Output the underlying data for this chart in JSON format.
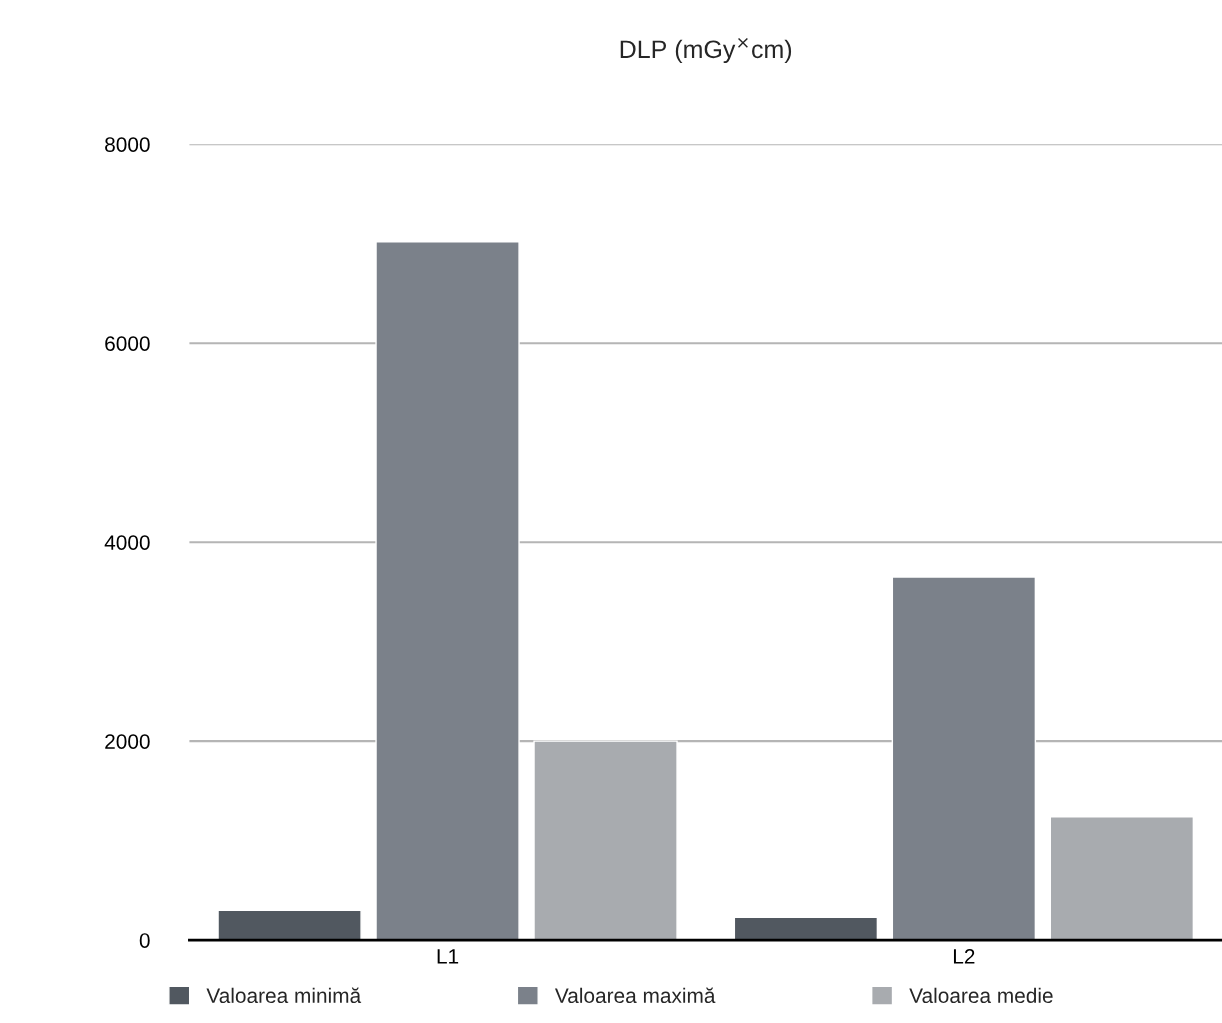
{
  "chart_data": {
    "type": "bar",
    "title": "DLP (mGy$^{×}$cm)",
    "categories": [
      "L1",
      "L2"
    ],
    "series": [
      {
        "name": "Valoarea minimă",
        "color": "#515860",
        "values": [
          300,
          230
        ]
      },
      {
        "name": "Valoarea maximă",
        "color": "#7b818a",
        "values": [
          7020,
          3650
        ]
      },
      {
        "name": "Valoarea medie",
        "color": "#a8abaf",
        "values": [
          2000,
          1240
        ]
      }
    ],
    "ylim": [
      0,
      8000
    ],
    "yticks": [
      0,
      2000,
      4000,
      6000,
      8000
    ],
    "grid": "y",
    "legend": "bottom"
  }
}
